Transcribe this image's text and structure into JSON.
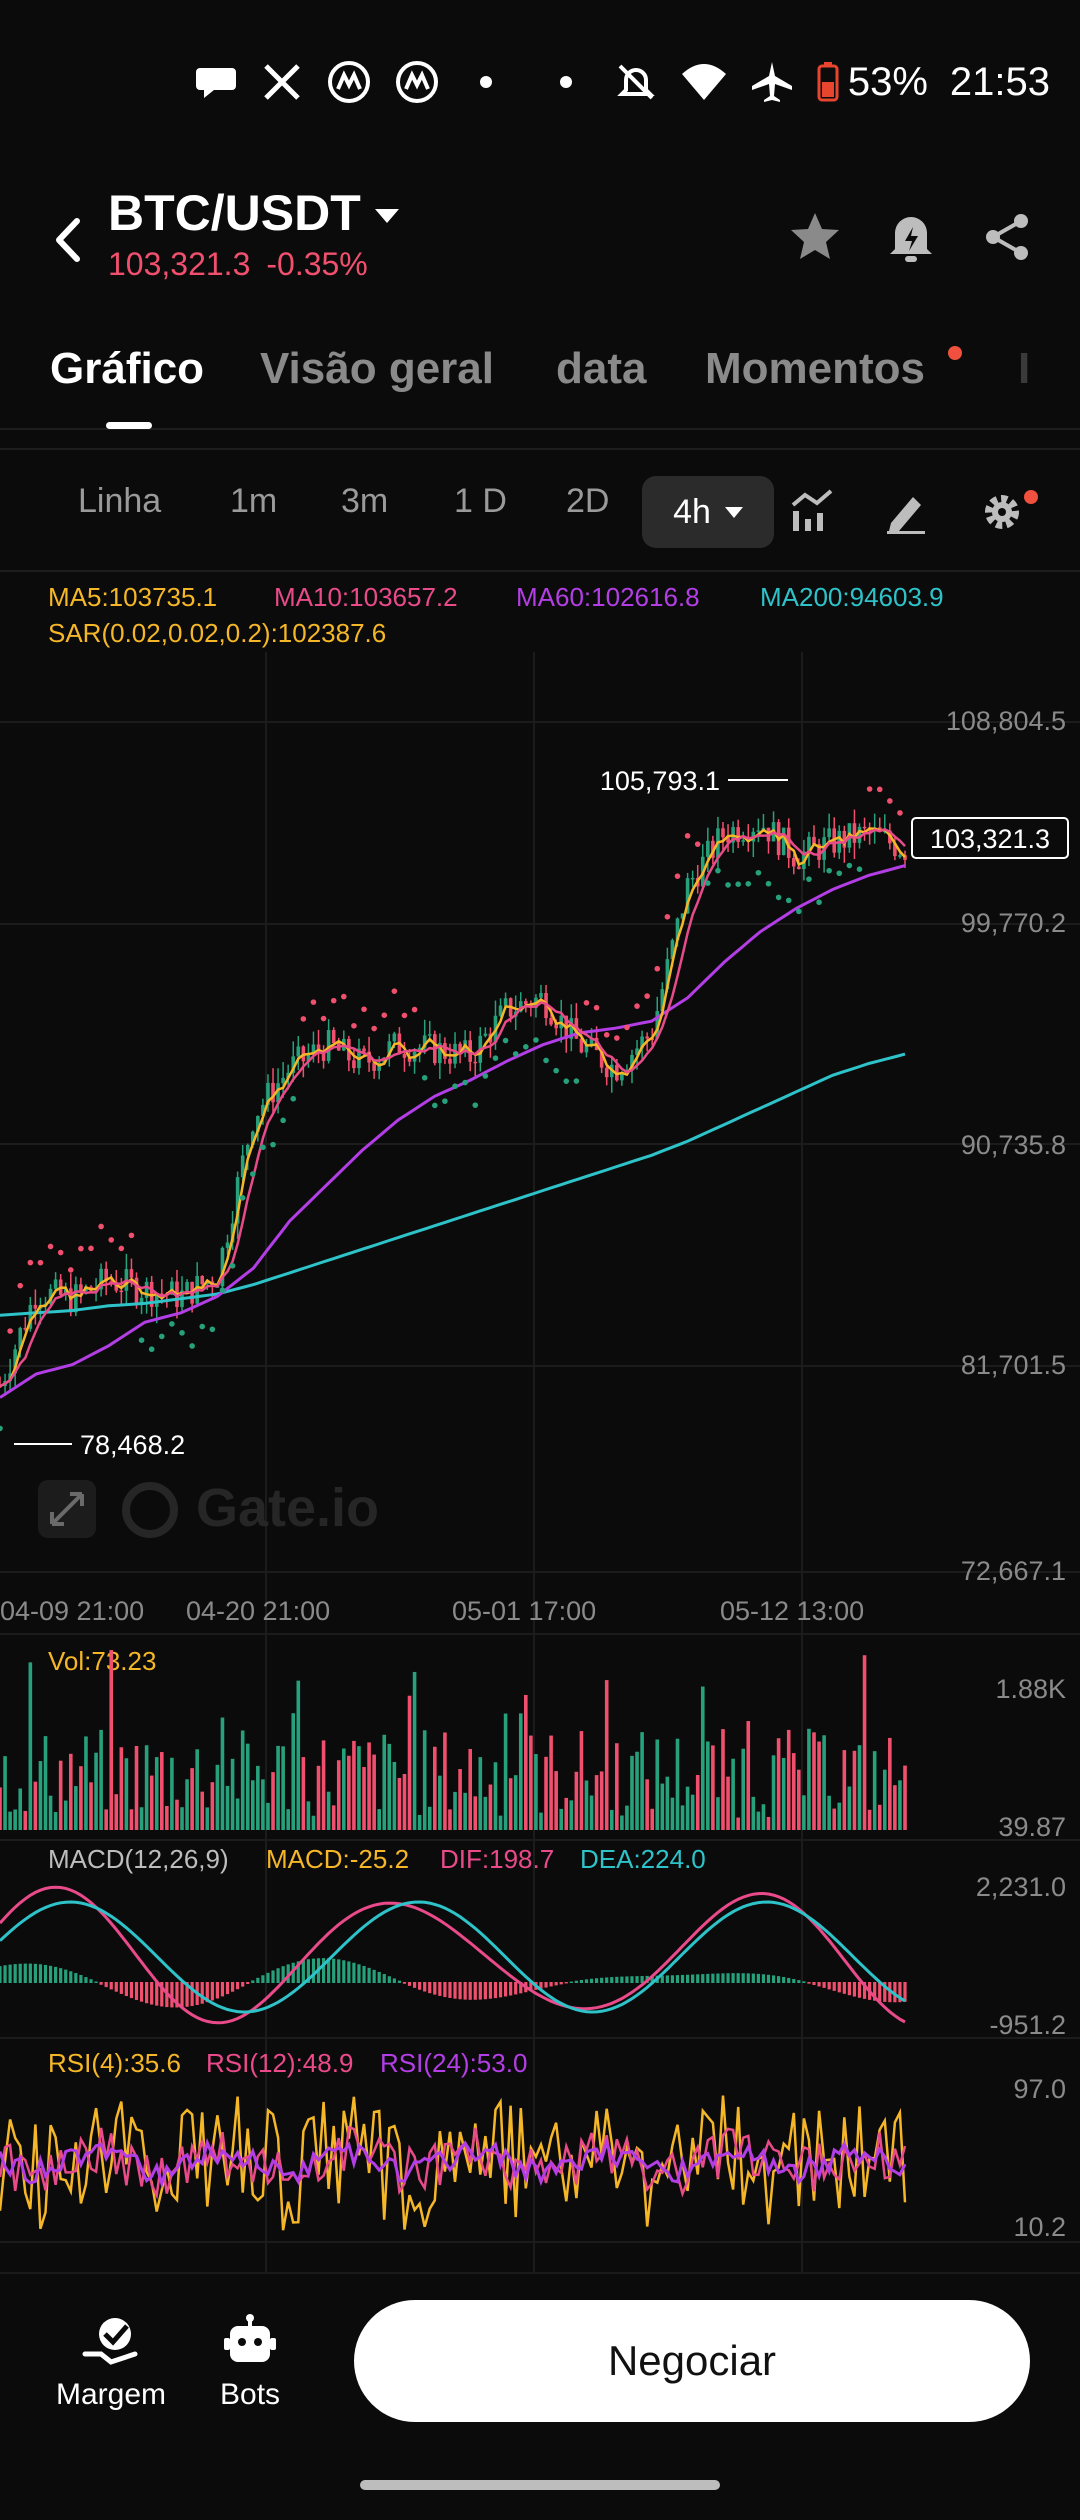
{
  "status_bar": {
    "battery": "53%",
    "time": "21:53",
    "battery_color": "#e8452f"
  },
  "header": {
    "pair": "BTC/USDT",
    "price": "103,321.3",
    "change": "-0.35%",
    "price_color": "#f0506e"
  },
  "tabs": [
    {
      "label": "Gráfico"
    },
    {
      "label": "Visão geral"
    },
    {
      "label": "data"
    },
    {
      "label": "Momentos"
    },
    {
      "label": "I"
    }
  ],
  "toolbar": {
    "intervals": [
      "Linha",
      "1m",
      "3m",
      "1 D",
      "2D"
    ],
    "selected": "4h"
  },
  "indicators": {
    "ma5": "MA5:103735.1",
    "ma10": "MA10:103657.2",
    "ma60": "MA60:102616.8",
    "ma200": "MA200:94603.9",
    "sar": "SAR(0.02,0.02,0.2):102387.6",
    "vol": "Vol:73.23",
    "macd_title": "MACD(12,26,9)",
    "macd": "MACD:-25.2",
    "dif": "DIF:198.7",
    "dea": "DEA:224.0",
    "rsi4": "RSI(4):35.6",
    "rsi12": "RSI(12):48.9",
    "rsi24": "RSI(24):53.0"
  },
  "colors": {
    "up": "#26a17b",
    "down": "#f0506e",
    "ma5": "#f5b728",
    "ma10": "#e84a8a",
    "ma60": "#b33ee6",
    "ma200": "#2ec3c9",
    "sar": "#f5b728"
  },
  "chart_data": {
    "type": "line",
    "title": "BTC/USDT 4h",
    "x_ticks": [
      "04-09 21:00",
      "04-20 21:00",
      "05-01 17:00",
      "05-12 13:00"
    ],
    "y_ticks": [
      "108,804.5",
      "99,770.2",
      "90,735.8",
      "81,701.5",
      "72,667.1"
    ],
    "ylim": [
      72667.1,
      108804.5
    ],
    "high_label": "105,793.1",
    "low_label": "78,468.2",
    "last_price_label": "103,321.3",
    "price_x": [
      0,
      4,
      8,
      12,
      16,
      20,
      24,
      28,
      32,
      36,
      40,
      44,
      48,
      52,
      56,
      60,
      64,
      68,
      72,
      76,
      80,
      84,
      88,
      92,
      96,
      100
    ],
    "price": [
      80500,
      84500,
      84200,
      85000,
      84600,
      84300,
      85200,
      92000,
      94000,
      95000,
      94200,
      95000,
      94800,
      94500,
      96500,
      97000,
      95000,
      94000,
      95500,
      101800,
      104000,
      104500,
      103000,
      103600,
      104000,
      103321
    ],
    "ma200": [
      83500,
      83600,
      83700,
      83900,
      84000,
      84200,
      84400,
      84800,
      85300,
      85800,
      86300,
      86800,
      87300,
      87800,
      88300,
      88800,
      89300,
      89800,
      90300,
      90900,
      91600,
      92300,
      93000,
      93700,
      94200,
      94600
    ],
    "ma60": [
      80000,
      81000,
      81400,
      82200,
      83200,
      83600,
      84300,
      85500,
      87500,
      89000,
      90500,
      91800,
      92800,
      93500,
      94300,
      95000,
      95500,
      95700,
      96000,
      97000,
      98500,
      99800,
      100800,
      101600,
      102200,
      102616
    ],
    "volume_axis": [
      "1.88K",
      "39.87"
    ],
    "macd_axis": [
      "2,231.0",
      "-951.2"
    ],
    "rsi_axis": [
      "97.0",
      "10.2"
    ]
  },
  "watermark": "Gate.io",
  "bottom_bar": {
    "margin": "Margem",
    "bots": "Bots",
    "trade": "Negociar"
  }
}
